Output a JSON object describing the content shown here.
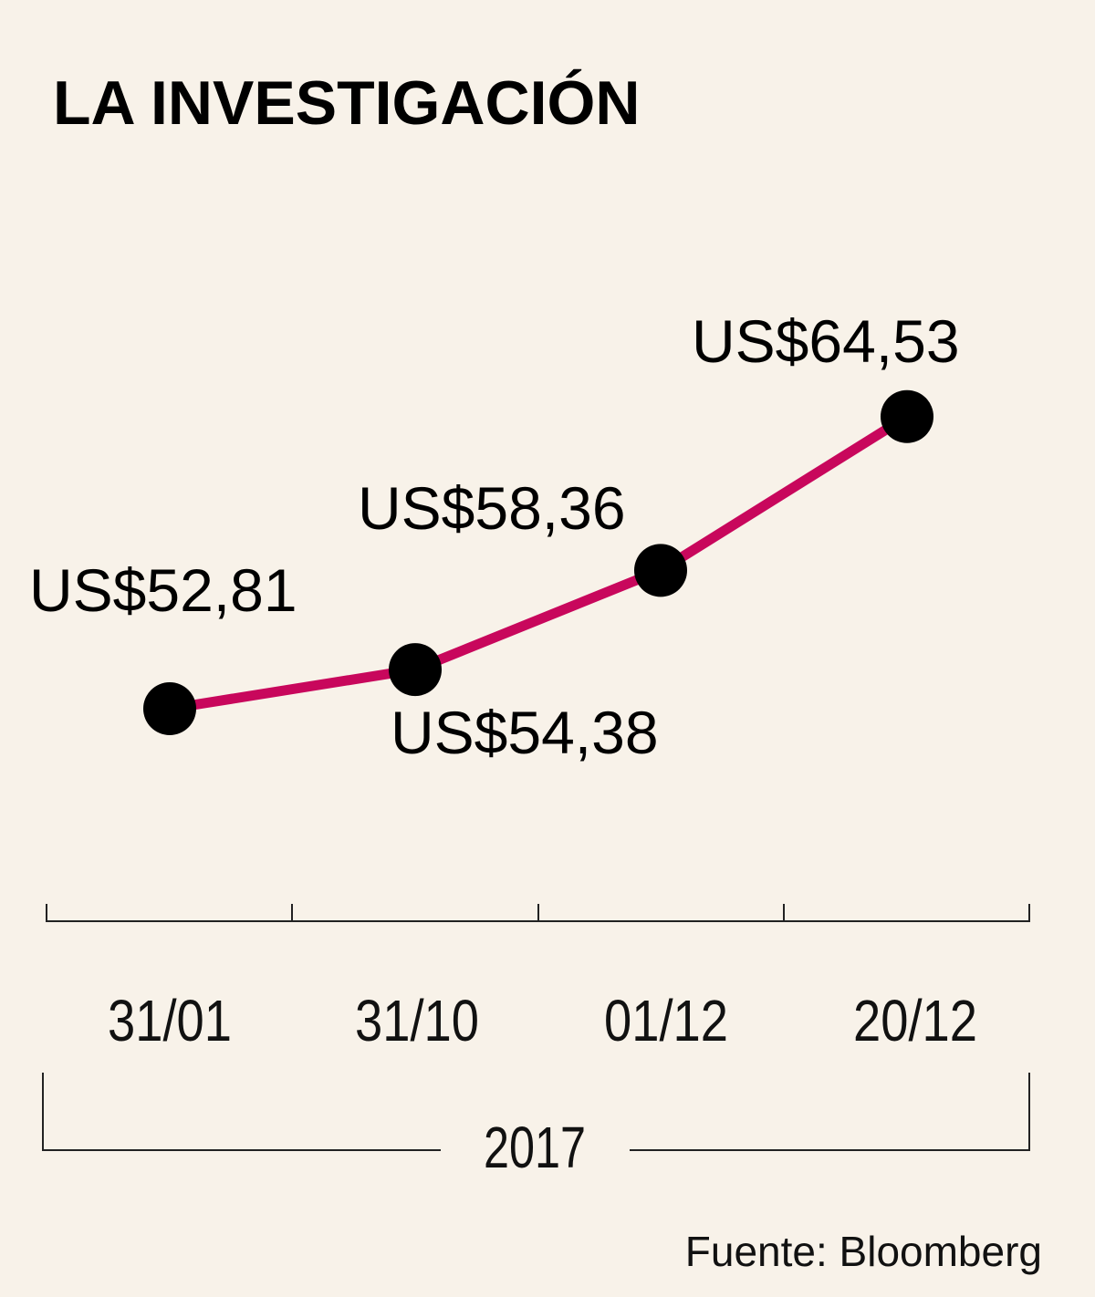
{
  "chart_data": {
    "type": "line",
    "title": "LA INVESTIGACIÓN",
    "categories": [
      "31/01",
      "31/10",
      "01/12",
      "20/12"
    ],
    "series": [
      {
        "values": [
          52.81,
          54.38,
          58.36,
          64.53
        ],
        "labels": [
          "US$52,81",
          "US$54,38",
          "US$58,36",
          "US$64,53"
        ]
      }
    ],
    "year": "2017",
    "source": "Fuente: Bloomberg",
    "line_color": "#c8075c",
    "marker_color": "#000000",
    "background": "#f8f2e9"
  }
}
